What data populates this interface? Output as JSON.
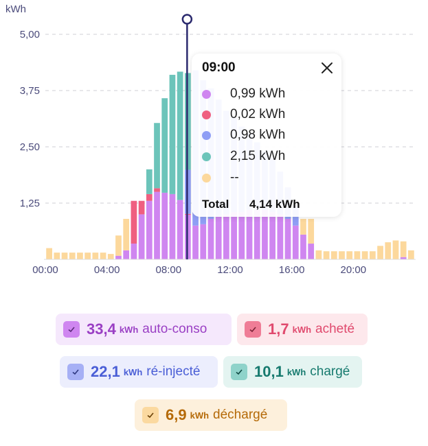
{
  "chart_data": {
    "type": "bar",
    "stacked": true,
    "ylabel": "kWh",
    "ylim": [
      0,
      5.0
    ],
    "yticks": [
      "5,00",
      "3,75",
      "2,50",
      "1,25"
    ],
    "xticks": [
      "00:00",
      "04:00",
      "08:00",
      "12:00",
      "16:00",
      "20:00"
    ],
    "grid": true,
    "x": [
      "00:00",
      "00:30",
      "01:00",
      "01:30",
      "02:00",
      "02:30",
      "03:00",
      "03:30",
      "04:00",
      "04:30",
      "05:00",
      "05:30",
      "06:00",
      "06:30",
      "07:00",
      "07:30",
      "08:00",
      "08:30",
      "09:00",
      "09:30",
      "10:00",
      "10:30",
      "11:00",
      "11:30",
      "12:00",
      "12:30",
      "13:00",
      "13:30",
      "14:00",
      "14:30",
      "15:00",
      "15:30",
      "16:00",
      "16:30",
      "17:00",
      "17:30",
      "18:00",
      "18:30",
      "19:00",
      "19:30",
      "20:00",
      "20:30",
      "21:00",
      "21:30",
      "22:00",
      "22:30",
      "23:00",
      "23:30"
    ],
    "series": [
      {
        "key": "auto",
        "color": "#cf86f0",
        "values": [
          0,
          0,
          0,
          0,
          0,
          0,
          0,
          0,
          0,
          0.08,
          0.2,
          0.35,
          1.0,
          1.3,
          1.5,
          1.48,
          1.45,
          1.32,
          0.99,
          0.75,
          0.78,
          0.9,
          0.95,
          1.0,
          1.05,
          1.05,
          1.1,
          1.1,
          1.1,
          1.05,
          1.0,
          0.9,
          0.75,
          0.55,
          0.35,
          0,
          0,
          0,
          0,
          0,
          0,
          0,
          0,
          0,
          0,
          0,
          0.05,
          0
        ]
      },
      {
        "key": "achete",
        "color": "#ef5f80",
        "values": [
          0,
          0,
          0,
          0,
          0,
          0,
          0,
          0,
          0,
          0,
          0,
          0.95,
          0.3,
          0.15,
          0.08,
          0,
          0,
          0,
          0.02,
          0,
          0,
          0,
          0,
          0,
          0,
          0,
          0,
          0,
          0,
          0,
          0,
          0,
          0,
          0,
          0,
          0,
          0,
          0,
          0,
          0,
          0,
          0,
          0,
          0,
          0,
          0,
          0,
          0
        ]
      },
      {
        "key": "reinjecte",
        "color": "#8f9ef5",
        "values": [
          0,
          0,
          0,
          0,
          0,
          0,
          0,
          0,
          0,
          0,
          0,
          0,
          0,
          0,
          0,
          0,
          0,
          0,
          0.98,
          3.45,
          3.2,
          2.9,
          2.6,
          2.3,
          2.1,
          1.9,
          1.7,
          1.5,
          1.3,
          1.2,
          0.95,
          0.7,
          0.45,
          0,
          0,
          0,
          0,
          0,
          0,
          0,
          0,
          0,
          0,
          0,
          0,
          0,
          0,
          0
        ]
      },
      {
        "key": "charge",
        "color": "#6cc4ba",
        "values": [
          0,
          0,
          0,
          0,
          0,
          0,
          0,
          0,
          0,
          0,
          0,
          0,
          0,
          0.55,
          1.45,
          2.1,
          2.65,
          2.85,
          2.15,
          0,
          0,
          0,
          0,
          0,
          0,
          0,
          0,
          0,
          0,
          0,
          0,
          0,
          0,
          0,
          0,
          0,
          0,
          0,
          0,
          0,
          0,
          0,
          0,
          0,
          0,
          0,
          0,
          0
        ]
      },
      {
        "key": "decharge",
        "color": "#fcd89c",
        "values": [
          0.25,
          0.15,
          0.15,
          0.15,
          0.15,
          0.15,
          0.15,
          0.15,
          0.12,
          0.45,
          0.7,
          0,
          0,
          0,
          0,
          0,
          0,
          0,
          0,
          0,
          0,
          0,
          0,
          0,
          0,
          0,
          0,
          0,
          0,
          0,
          0,
          0,
          0,
          0.35,
          0.55,
          0.2,
          0.18,
          0.18,
          0.18,
          0.18,
          0.18,
          0.18,
          0.18,
          0.3,
          0.38,
          0.42,
          0.35,
          0.2
        ]
      }
    ],
    "selected_index": 18
  },
  "tooltip": {
    "time": "09:00",
    "rows": [
      {
        "color": "#cf86f0",
        "value": "0,99 kWh"
      },
      {
        "color": "#ef5f80",
        "value": "0,02 kWh"
      },
      {
        "color": "#8f9ef5",
        "value": "0,98 kWh"
      },
      {
        "color": "#6cc4ba",
        "value": "2,15 kWh"
      },
      {
        "color": "#fcd89c",
        "value": "--"
      }
    ],
    "total_label": "Total",
    "total_value": "4,14 kWh"
  },
  "legend": [
    {
      "value": "33,4",
      "unit": "kWh",
      "label": "auto-conso",
      "bg": "#f5e8fc",
      "fg": "#9a3fc4",
      "cb": "#cf86f0",
      "check": "#5a2a78"
    },
    {
      "value": "1,7",
      "unit": "kWh",
      "label": "acheté",
      "bg": "#fde8ec",
      "fg": "#e04a6e",
      "cb": "#ef7d96",
      "check": "#7a2236"
    },
    {
      "value": "22,1",
      "unit": "kWh",
      "label": "ré-injecté",
      "bg": "#eceefd",
      "fg": "#4a5ed6",
      "cb": "#a6b0f5",
      "check": "#2e3880"
    },
    {
      "value": "10,1",
      "unit": "kWh",
      "label": "chargé",
      "bg": "#e4f4f1",
      "fg": "#167a6e",
      "cb": "#8fd3ca",
      "check": "#0f4a43"
    },
    {
      "value": "6,9",
      "unit": "kWh",
      "label": "déchargé",
      "bg": "#fdf0dc",
      "fg": "#b56a08",
      "cb": "#fbd9a0",
      "check": "#6a4006"
    }
  ]
}
